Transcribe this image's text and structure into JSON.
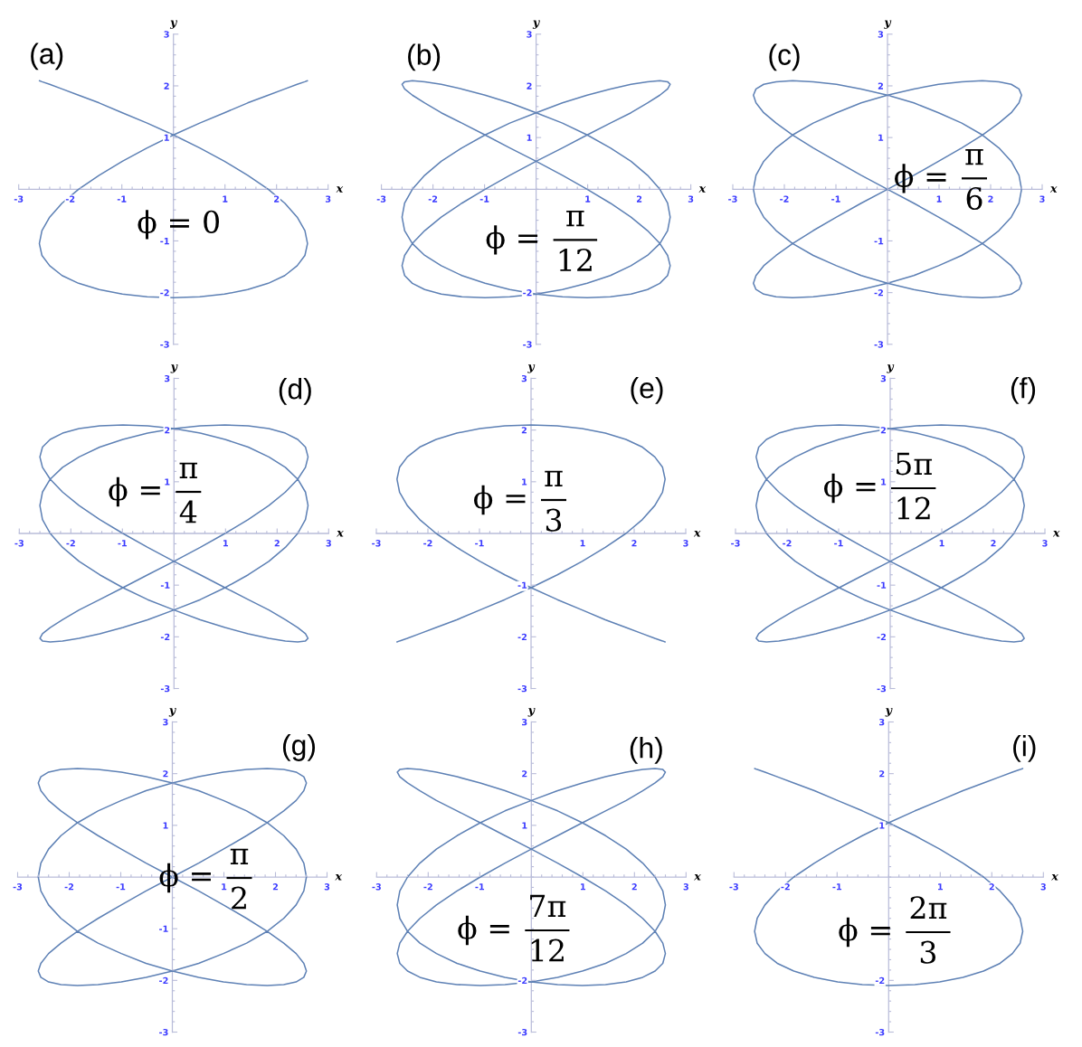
{
  "chart_data": [
    {
      "type": "line",
      "title": "(a)",
      "xlabel": "x",
      "ylabel": "y",
      "annotations": [
        "ϕ = 0"
      ],
      "xlim": [
        -3,
        3
      ],
      "ylim": [
        -3,
        3
      ],
      "xticks": [
        -3,
        -2,
        -1,
        1,
        2,
        3
      ],
      "yticks": [
        -3,
        -2,
        -1,
        1,
        2,
        3
      ],
      "series": [
        {
          "color": "#5e81b5",
          "x": [
            2.6,
            2.55,
            2.4,
            2.16,
            1.84,
            1.44,
            0.99,
            0.51,
            0,
            -0.51,
            -0.99,
            -1.44,
            -1.84,
            -2.16,
            -2.4,
            -2.55,
            -2.6,
            -2.55,
            -2.4,
            -2.16,
            -1.84,
            -1.44,
            -0.99,
            -0.51,
            0,
            0.51,
            0.99,
            1.44,
            1.84,
            2.16,
            2.4,
            2.55,
            2.6,
            2.55,
            2.4,
            2.16,
            1.84,
            1.44,
            0.99,
            0.51,
            0,
            -0.51,
            -0.99,
            -1.44,
            -1.84,
            -2.16,
            -2.4,
            -2.55,
            -2.6
          ],
          "values": [
            2.1,
            2.08,
            2.03,
            1.94,
            1.82,
            1.67,
            1.48,
            1.28,
            1.05,
            0.8,
            0.54,
            0.27,
            0,
            -0.27,
            -0.54,
            -0.8,
            -1.05,
            -1.28,
            -1.48,
            -1.67,
            -1.82,
            -1.94,
            -2.03,
            -2.08,
            -2.1,
            -2.08,
            -2.03,
            -1.94,
            -1.82,
            -1.67,
            -1.48,
            -1.28,
            -1.05,
            -0.8,
            -0.54,
            -0.27,
            0,
            0.27,
            0.54,
            0.8,
            1.05,
            1.28,
            1.48,
            1.67,
            1.82,
            1.94,
            2.03,
            2.08,
            2.1
          ]
        }
      ]
    },
    {
      "type": "line",
      "title": "(b)",
      "xlabel": "x",
      "ylabel": "y",
      "annotations": [
        "ϕ =",
        "π",
        "12"
      ],
      "xlim": [
        -3,
        3
      ],
      "ylim": [
        -3,
        3
      ],
      "xticks": [
        -3,
        -2,
        -1,
        1,
        2,
        3
      ],
      "yticks": [
        -3,
        -2,
        1,
        2,
        3
      ],
      "series": [
        {
          "color": "#5e81b5",
          "x": [
            2.6,
            2.55,
            2.4,
            2.16,
            1.84,
            1.44,
            0.99,
            0.51,
            0,
            -0.51,
            -0.99,
            -1.44,
            -1.84,
            -2.16,
            -2.4,
            -2.55,
            -2.6,
            -2.55,
            -2.4,
            -2.16,
            -1.84,
            -1.44,
            -0.99,
            -0.51,
            0,
            0.51,
            0.99,
            1.44,
            1.84,
            2.16,
            2.4,
            2.55,
            2.6,
            2.55,
            2.4,
            2.16,
            1.84,
            1.44,
            0.99,
            0.51,
            0,
            -0.51,
            -0.99,
            -1.44,
            -1.84,
            -2.16,
            -2.4,
            -2.55,
            -2.6,
            -2.55,
            -2.4,
            -2.16,
            -1.84,
            -1.44,
            -0.99,
            -0.51,
            0,
            0.51,
            0.99,
            1.44,
            1.84,
            2.16,
            2.4,
            2.55,
            2.6,
            2.55,
            2.4,
            2.16,
            1.84,
            1.44,
            0.99,
            0.51,
            0,
            -0.51,
            -0.99,
            -1.44,
            -1.84,
            -2.16,
            -2.4,
            -2.55,
            -2.6,
            -2.55,
            -2.4,
            -2.16,
            -1.84,
            -1.44,
            -0.99,
            -0.51,
            0,
            0.51,
            0.99,
            1.44,
            1.84,
            2.16,
            2.4,
            2.55,
            2.6,
            2.55,
            2.4,
            2.16
          ],
          "values": [
            2.03,
            1.94,
            1.82,
            1.67,
            1.48,
            1.28,
            1.05,
            0.8,
            0.54,
            0.27,
            0,
            -0.27,
            -0.54,
            -0.8,
            -1.05,
            -1.28,
            -1.48,
            -1.67,
            -1.82,
            -1.94,
            -2.03,
            -2.08,
            -2.1,
            -2.08,
            -2.03,
            -1.94,
            -1.82,
            -1.67,
            -1.48,
            -1.28,
            -1.05,
            -0.8,
            -0.54,
            -0.27,
            0,
            0.27,
            0.54,
            0.8,
            1.05,
            1.28,
            1.48,
            1.67,
            1.82,
            1.94,
            2.03,
            2.08,
            2.1,
            2.08,
            2.03,
            1.94,
            1.82,
            1.67,
            1.48,
            1.28,
            1.05,
            0.8,
            0.54,
            0.27,
            0,
            -0.27,
            -0.54,
            -0.8,
            -1.05,
            -1.28,
            -1.48,
            -1.67,
            -1.82,
            -1.94,
            -2.03,
            -2.08,
            -2.1,
            -2.08,
            -2.03,
            -1.94,
            -1.82,
            -1.67,
            -1.48,
            -1.28,
            -1.05,
            -0.8,
            -0.54,
            -0.27,
            0,
            0.27,
            0.54,
            0.8,
            1.05,
            1.28,
            1.48,
            1.67,
            1.82,
            1.94,
            2.03,
            2.08,
            2.1,
            2.08,
            2.03,
            1.94,
            1.82,
            1.67
          ]
        }
      ]
    },
    {
      "type": "line",
      "title": "(c)",
      "xlabel": "x",
      "ylabel": "y",
      "annotations": [
        "ϕ =",
        "π",
        "6"
      ],
      "xlim": [
        -3,
        3
      ],
      "ylim": [
        -3,
        3
      ],
      "xticks": [
        -3,
        -2,
        -1,
        1,
        2,
        3
      ],
      "yticks": [
        -3,
        -2,
        -1,
        1,
        2,
        3
      ],
      "series": [
        {
          "color": "#5e81b5",
          "x": [
            2.6,
            2.55,
            2.4,
            2.16,
            1.84,
            1.44,
            0.99,
            0.51,
            0,
            -0.51,
            -0.99,
            -1.44,
            -1.84,
            -2.16,
            -2.4,
            -2.55,
            -2.6,
            -2.55,
            -2.4,
            -2.16,
            -1.84,
            -1.44,
            -0.99,
            -0.51,
            0,
            0.51,
            0.99,
            1.44,
            1.84,
            2.16,
            2.4,
            2.55,
            2.6,
            2.55,
            2.4,
            2.16,
            1.84,
            1.44,
            0.99,
            0.51,
            0,
            -0.51,
            -0.99,
            -1.44,
            -1.84,
            -2.16,
            -2.4,
            -2.55,
            -2.6,
            -2.55,
            -2.4,
            -2.16,
            -1.84,
            -1.44,
            -0.99,
            -0.51,
            0,
            0.51,
            0.99,
            1.44,
            1.84,
            2.16,
            2.4,
            2.55,
            2.6,
            2.55,
            2.4,
            2.16,
            1.84,
            1.44,
            0.99,
            0.51,
            0,
            -0.51,
            -0.99,
            -1.44,
            -1.84,
            -2.16,
            -2.4,
            -2.55,
            -2.6,
            -2.55,
            -2.4,
            -2.16,
            -1.84,
            -1.44,
            -0.99,
            -0.51,
            0,
            0.51,
            0.99,
            1.44,
            1.84,
            2.16,
            2.4,
            2.55,
            2.6,
            2.55,
            2.4,
            2.16
          ],
          "values": [
            1.82,
            1.67,
            1.48,
            1.28,
            1.05,
            0.8,
            0.54,
            0.27,
            0,
            -0.27,
            -0.54,
            -0.8,
            -1.05,
            -1.28,
            -1.48,
            -1.67,
            -1.82,
            -1.94,
            -2.03,
            -2.08,
            -2.1,
            -2.08,
            -2.03,
            -1.94,
            -1.82,
            -1.67,
            -1.48,
            -1.28,
            -1.05,
            -0.8,
            -0.54,
            -0.27,
            0,
            0.27,
            0.54,
            0.8,
            1.05,
            1.28,
            1.48,
            1.67,
            1.82,
            1.94,
            2.03,
            2.08,
            2.1,
            2.08,
            2.03,
            1.94,
            1.82,
            1.67,
            1.48,
            1.28,
            1.05,
            0.8,
            0.54,
            0.27,
            0,
            -0.27,
            -0.54,
            -0.8,
            -1.05,
            -1.28,
            -1.48,
            -1.67,
            -1.82,
            -1.94,
            -2.03,
            -2.08,
            -2.1,
            -2.08,
            -2.03,
            -1.94,
            -1.82,
            -1.67,
            -1.48,
            -1.28,
            -1.05,
            -0.8,
            -0.54,
            -0.27,
            0,
            0.27,
            0.54,
            0.8,
            1.05,
            1.28,
            1.48,
            1.67,
            1.82,
            1.94,
            2.03,
            2.08,
            2.1,
            2.08,
            2.03,
            1.94,
            1.82,
            1.67,
            1.48,
            1.28
          ]
        }
      ]
    },
    {
      "type": "line",
      "title": "(d)",
      "xlabel": "x",
      "ylabel": "y",
      "annotations": [
        "ϕ =",
        "π",
        "4"
      ],
      "xlim": [
        -3,
        3
      ],
      "ylim": [
        -3,
        3
      ],
      "xticks": [
        -3,
        -2,
        -1,
        1,
        2,
        3
      ],
      "yticks": [
        -3,
        -2,
        -1,
        1,
        2,
        3
      ],
      "series": [
        {
          "color": "#5e81b5",
          "x": [
            2.6,
            2.55,
            2.4,
            2.16,
            1.84,
            1.44,
            0.99,
            0.51,
            0,
            -0.51,
            -0.99,
            -1.44,
            -1.84,
            -2.16,
            -2.4,
            -2.55,
            -2.6,
            -2.55,
            -2.4,
            -2.16,
            -1.84,
            -1.44,
            -0.99,
            -0.51,
            0,
            0.51,
            0.99,
            1.44,
            1.84,
            2.16,
            2.4,
            2.55,
            2.6,
            2.55,
            2.4,
            2.16,
            1.84,
            1.44,
            0.99,
            0.51,
            0,
            -0.51,
            -0.99,
            -1.44,
            -1.84,
            -2.16,
            -2.4,
            -2.55,
            -2.6,
            -2.55,
            -2.4,
            -2.16,
            -1.84,
            -1.44,
            -0.99,
            -0.51,
            0,
            0.51,
            0.99,
            1.44,
            1.84,
            2.16,
            2.4,
            2.55,
            2.6,
            2.55,
            2.4,
            2.16,
            1.84,
            1.44,
            0.99,
            0.51,
            0,
            -0.51,
            -0.99,
            -1.44,
            -1.84,
            -2.16,
            -2.4,
            -2.55,
            -2.6,
            -2.55,
            -2.4,
            -2.16,
            -1.84,
            -1.44,
            -0.99,
            -0.51,
            0,
            0.51,
            0.99,
            1.44,
            1.84,
            2.16,
            2.4,
            2.55,
            2.6,
            2.55,
            2.4,
            2.16
          ],
          "values": [
            1.48,
            1.28,
            1.05,
            0.8,
            0.54,
            0.27,
            0,
            -0.27,
            -0.54,
            -0.8,
            -1.05,
            -1.28,
            -1.48,
            -1.67,
            -1.82,
            -1.94,
            -2.03,
            -2.08,
            -2.1,
            -2.08,
            -2.03,
            -1.94,
            -1.82,
            -1.67,
            -1.48,
            -1.28,
            -1.05,
            -0.8,
            -0.54,
            -0.27,
            0,
            0.27,
            0.54,
            0.8,
            1.05,
            1.28,
            1.48,
            1.67,
            1.82,
            1.94,
            2.03,
            2.08,
            2.1,
            2.08,
            2.03,
            1.94,
            1.82,
            1.67,
            1.48,
            1.28,
            1.05,
            0.8,
            0.54,
            0.27,
            0,
            -0.27,
            -0.54,
            -0.8,
            -1.05,
            -1.28,
            -1.48,
            -1.67,
            -1.82,
            -1.94,
            -2.03,
            -2.08,
            -2.1,
            -2.08,
            -2.03,
            -1.94,
            -1.82,
            -1.67,
            -1.48,
            -1.28,
            -1.05,
            -0.8,
            -0.54,
            -0.27,
            0,
            0.27,
            0.54,
            0.8,
            1.05,
            1.28,
            1.48,
            1.67,
            1.82,
            1.94,
            2.03,
            2.08,
            2.1,
            2.08,
            2.03,
            1.94,
            1.82,
            1.67,
            1.48,
            1.28,
            1.05,
            0.8
          ]
        }
      ]
    },
    {
      "type": "line",
      "title": "(e)",
      "xlabel": "x",
      "ylabel": "y",
      "annotations": [
        "ϕ =",
        "π",
        "3"
      ],
      "xlim": [
        -3,
        3
      ],
      "ylim": [
        -3,
        3
      ],
      "xticks": [
        -3,
        -2,
        -1,
        1,
        2,
        3
      ],
      "yticks": [
        -3,
        -2,
        -1,
        1,
        2,
        3
      ],
      "series": [
        {
          "color": "#5e81b5",
          "x": [
            -2.6,
            -2.55,
            -2.4,
            -2.16,
            -1.84,
            -1.44,
            -0.99,
            -0.51,
            0,
            0.51,
            0.99,
            1.44,
            1.84,
            2.16,
            2.4,
            2.55,
            2.6,
            2.55,
            2.4,
            2.16,
            1.84,
            1.44,
            0.99,
            0.51,
            0,
            -0.51,
            -0.99,
            -1.44,
            -1.84,
            -2.16,
            -2.4,
            -2.55,
            -2.6,
            -2.55,
            -2.4,
            -2.16,
            -1.84,
            -1.44,
            -0.99,
            -0.51,
            0,
            0.51,
            0.99,
            1.44,
            1.84,
            2.16,
            2.4,
            2.55,
            2.6
          ],
          "values": [
            -2.1,
            -2.08,
            -2.03,
            -1.94,
            -1.82,
            -1.67,
            -1.48,
            -1.28,
            -1.05,
            -0.8,
            -0.54,
            -0.27,
            0,
            0.27,
            0.54,
            0.8,
            1.05,
            1.28,
            1.48,
            1.67,
            1.82,
            1.94,
            2.03,
            2.08,
            2.1,
            2.08,
            2.03,
            1.94,
            1.82,
            1.67,
            1.48,
            1.28,
            1.05,
            0.8,
            0.54,
            0.27,
            0,
            -0.27,
            -0.54,
            -0.8,
            -1.05,
            -1.28,
            -1.48,
            -1.67,
            -1.82,
            -1.94,
            -2.03,
            -2.08,
            -2.1
          ]
        }
      ]
    },
    {
      "type": "line",
      "title": "(f)",
      "xlabel": "x",
      "ylabel": "y",
      "annotations": [
        "ϕ =",
        "5π",
        "12"
      ],
      "xlim": [
        -3,
        3
      ],
      "ylim": [
        -3,
        3
      ],
      "xticks": [
        -3,
        -2,
        -1,
        1,
        2,
        3
      ],
      "yticks": [
        -3,
        -2,
        -1,
        1,
        2,
        3
      ],
      "series": [
        {
          "color": "#5e81b5",
          "x": [
            2.6,
            2.55,
            2.4,
            2.16,
            1.84,
            1.44,
            0.99,
            0.51,
            0,
            -0.51,
            -0.99,
            -1.44,
            -1.84,
            -2.16,
            -2.4,
            -2.55,
            -2.6,
            -2.55,
            -2.4,
            -2.16,
            -1.84,
            -1.44,
            -0.99,
            -0.51,
            0,
            0.51,
            0.99,
            1.44,
            1.84,
            2.16,
            2.4,
            2.55,
            2.6,
            2.55,
            2.4,
            2.16,
            1.84,
            1.44,
            0.99,
            0.51,
            0,
            -0.51,
            -0.99,
            -1.44,
            -1.84,
            -2.16,
            -2.4,
            -2.55,
            -2.6,
            -2.55,
            -2.4,
            -2.16,
            -1.84,
            -1.44,
            -0.99,
            -0.51,
            0,
            0.51,
            0.99,
            1.44,
            1.84,
            2.16,
            2.4,
            2.55,
            2.6,
            2.55,
            2.4,
            2.16,
            1.84,
            1.44,
            0.99,
            0.51,
            0,
            -0.51,
            -0.99,
            -1.44,
            -1.84,
            -2.16,
            -2.4,
            -2.55,
            -2.6,
            -2.55,
            -2.4,
            -2.16,
            -1.84,
            -1.44,
            -0.99,
            -0.51,
            0,
            0.51,
            0.99,
            1.44,
            1.84,
            2.16,
            2.4,
            2.55,
            2.6,
            2.55,
            2.4,
            2.16
          ],
          "values": [
            0.54,
            0.27,
            0,
            -0.27,
            -0.54,
            -0.8,
            -1.05,
            -1.28,
            -1.48,
            -1.67,
            -1.82,
            -1.94,
            -2.03,
            -2.08,
            -2.1,
            -2.08,
            -2.03,
            -1.94,
            -1.82,
            -1.67,
            -1.48,
            -1.28,
            -1.05,
            -0.8,
            -0.54,
            -0.27,
            0,
            0.27,
            0.54,
            0.8,
            1.05,
            1.28,
            1.48,
            1.67,
            1.82,
            1.94,
            2.03,
            2.08,
            2.1,
            2.08,
            2.03,
            1.94,
            1.82,
            1.67,
            1.48,
            1.28,
            1.05,
            0.8,
            0.54,
            0.27,
            0,
            -0.27,
            -0.54,
            -0.8,
            -1.05,
            -1.28,
            -1.48,
            -1.67,
            -1.82,
            -1.94,
            -2.03,
            -2.08,
            -2.1,
            -2.08,
            -2.03,
            -1.94,
            -1.82,
            -1.67,
            -1.48,
            -1.28,
            -1.05,
            -0.8,
            -0.54,
            -0.27,
            0,
            0.27,
            0.54,
            0.8,
            1.05,
            1.28,
            1.48,
            1.67,
            1.82,
            1.94,
            2.03,
            2.08,
            2.1,
            2.08,
            2.03,
            1.94,
            1.82,
            1.67,
            1.48,
            1.28,
            1.05,
            0.8,
            0.54,
            0.27,
            0,
            -0.27
          ]
        }
      ]
    },
    {
      "type": "line",
      "title": "(g)",
      "xlabel": "x",
      "ylabel": "y",
      "annotations": [
        "ϕ =",
        "π",
        "2"
      ],
      "xlim": [
        -3,
        3
      ],
      "ylim": [
        -3,
        3
      ],
      "xticks": [
        -3,
        -2,
        -1,
        1,
        2,
        3
      ],
      "yticks": [
        -3,
        -2,
        -1,
        1,
        2,
        3
      ],
      "series": [
        {
          "color": "#5e81b5",
          "x": [
            2.6,
            2.55,
            2.4,
            2.16,
            1.84,
            1.44,
            0.99,
            0.51,
            0,
            -0.51,
            -0.99,
            -1.44,
            -1.84,
            -2.16,
            -2.4,
            -2.55,
            -2.6,
            -2.55,
            -2.4,
            -2.16,
            -1.84,
            -1.44,
            -0.99,
            -0.51,
            0,
            0.51,
            0.99,
            1.44,
            1.84,
            2.16,
            2.4,
            2.55,
            2.6,
            2.55,
            2.4,
            2.16,
            1.84,
            1.44,
            0.99,
            0.51,
            0,
            -0.51,
            -0.99,
            -1.44,
            -1.84,
            -2.16,
            -2.4,
            -2.55,
            -2.6,
            -2.55,
            -2.4,
            -2.16,
            -1.84,
            -1.44,
            -0.99,
            -0.51,
            0,
            0.51,
            0.99,
            1.44,
            1.84,
            2.16,
            2.4,
            2.55,
            2.6,
            2.55,
            2.4,
            2.16,
            1.84,
            1.44,
            0.99,
            0.51,
            0,
            -0.51,
            -0.99,
            -1.44,
            -1.84,
            -2.16,
            -2.4,
            -2.55,
            -2.6,
            -2.55,
            -2.4,
            -2.16,
            -1.84,
            -1.44,
            -0.99,
            -0.51,
            0,
            0.51,
            0.99,
            1.44,
            1.84,
            2.16,
            2.4,
            2.55,
            2.6,
            2.55,
            2.4,
            2.16
          ],
          "values": [
            0,
            -0.27,
            -0.54,
            -0.8,
            -1.05,
            -1.28,
            -1.48,
            -1.67,
            -1.82,
            -1.94,
            -2.03,
            -2.08,
            -2.1,
            -2.08,
            -2.03,
            -1.94,
            -1.82,
            -1.67,
            -1.48,
            -1.28,
            -1.05,
            -0.8,
            -0.54,
            -0.27,
            0,
            0.27,
            0.54,
            0.8,
            1.05,
            1.28,
            1.48,
            1.67,
            1.82,
            1.94,
            2.03,
            2.08,
            2.1,
            2.08,
            2.03,
            1.94,
            1.82,
            1.67,
            1.48,
            1.28,
            1.05,
            0.8,
            0.54,
            0.27,
            0,
            -0.27,
            -0.54,
            -0.8,
            -1.05,
            -1.28,
            -1.48,
            -1.67,
            -1.82,
            -1.94,
            -2.03,
            -2.08,
            -2.1,
            -2.08,
            -2.03,
            -1.94,
            -1.82,
            -1.67,
            -1.48,
            -1.28,
            -1.05,
            -0.8,
            -0.54,
            -0.27,
            0,
            0.27,
            0.54,
            0.8,
            1.05,
            1.28,
            1.48,
            1.67,
            1.82,
            1.94,
            2.03,
            2.08,
            2.1,
            2.08,
            2.03,
            1.94,
            1.82,
            1.67,
            1.48,
            1.28,
            1.05,
            0.8,
            0.54,
            0.27,
            0,
            -0.27,
            -0.54,
            -0.8
          ]
        }
      ]
    },
    {
      "type": "line",
      "title": "(h)",
      "xlabel": "x",
      "ylabel": "y",
      "annotations": [
        "ϕ =",
        "7π",
        "12"
      ],
      "xlim": [
        -3,
        3
      ],
      "ylim": [
        -3,
        3
      ],
      "xticks": [
        -3,
        -2,
        -1,
        1,
        2,
        3
      ],
      "yticks": [
        -3,
        -2,
        1,
        2,
        3
      ],
      "series": [
        {
          "color": "#5e81b5",
          "x": [
            2.6,
            2.55,
            2.4,
            2.16,
            1.84,
            1.44,
            0.99,
            0.51,
            0,
            -0.51,
            -0.99,
            -1.44,
            -1.84,
            -2.16,
            -2.4,
            -2.55,
            -2.6,
            -2.55,
            -2.4,
            -2.16,
            -1.84,
            -1.44,
            -0.99,
            -0.51,
            0,
            0.51,
            0.99,
            1.44,
            1.84,
            2.16,
            2.4,
            2.55,
            2.6,
            2.55,
            2.4,
            2.16,
            1.84,
            1.44,
            0.99,
            0.51,
            0,
            -0.51,
            -0.99,
            -1.44,
            -1.84,
            -2.16,
            -2.4,
            -2.55,
            -2.6,
            -2.55,
            -2.4,
            -2.16,
            -1.84,
            -1.44,
            -0.99,
            -0.51,
            0,
            0.51,
            0.99,
            1.44,
            1.84,
            2.16,
            2.4,
            2.55,
            2.6,
            2.55,
            2.4,
            2.16,
            1.84,
            1.44,
            0.99,
            0.51,
            0,
            -0.51,
            -0.99,
            -1.44,
            -1.84,
            -2.16,
            -2.4,
            -2.55,
            -2.6,
            -2.55,
            -2.4,
            -2.16,
            -1.84,
            -1.44,
            -0.99,
            -0.51,
            0,
            0.51,
            0.99,
            1.44,
            1.84,
            2.16,
            2.4,
            2.55,
            2.6,
            2.55,
            2.4,
            2.16
          ],
          "values": [
            -0.54,
            -0.8,
            -1.05,
            -1.28,
            -1.48,
            -1.67,
            -1.82,
            -1.94,
            -2.03,
            -2.08,
            -2.1,
            -2.08,
            -2.03,
            -1.94,
            -1.82,
            -1.67,
            -1.48,
            -1.28,
            -1.05,
            -0.8,
            -0.54,
            -0.27,
            0,
            0.27,
            0.54,
            0.8,
            1.05,
            1.28,
            1.48,
            1.67,
            1.82,
            1.94,
            2.03,
            2.08,
            2.1,
            2.08,
            2.03,
            1.94,
            1.82,
            1.67,
            1.48,
            1.28,
            1.05,
            0.8,
            0.54,
            0.27,
            0,
            -0.27,
            -0.54,
            -0.8,
            -1.05,
            -1.28,
            -1.48,
            -1.67,
            -1.82,
            -1.94,
            -2.03,
            -2.08,
            -2.1,
            -2.08,
            -2.03,
            -1.94,
            -1.82,
            -1.67,
            -1.48,
            -1.28,
            -1.05,
            -0.8,
            -0.54,
            -0.27,
            0,
            0.27,
            0.54,
            0.8,
            1.05,
            1.28,
            1.48,
            1.67,
            1.82,
            1.94,
            2.03,
            2.08,
            2.1,
            2.08,
            2.03,
            1.94,
            1.82,
            1.67,
            1.48,
            1.28,
            1.05,
            0.8,
            0.54,
            0.27,
            0,
            -0.27,
            -0.54,
            -0.8,
            -1.05,
            -1.28
          ]
        }
      ]
    },
    {
      "type": "line",
      "title": "(i)",
      "xlabel": "x",
      "ylabel": "y",
      "annotations": [
        "ϕ =",
        "2π",
        "3"
      ],
      "xlim": [
        -3,
        3
      ],
      "ylim": [
        -3,
        3
      ],
      "xticks": [
        -3,
        -2,
        -1,
        1,
        2,
        3
      ],
      "yticks": [
        -3,
        -2,
        1,
        2,
        3
      ],
      "series": [
        {
          "color": "#5e81b5",
          "x": [
            2.6,
            2.55,
            2.4,
            2.16,
            1.84,
            1.44,
            0.99,
            0.51,
            0,
            -0.51,
            -0.99,
            -1.44,
            -1.84,
            -2.16,
            -2.4,
            -2.55,
            -2.6,
            -2.55,
            -2.4,
            -2.16,
            -1.84,
            -1.44,
            -0.99,
            -0.51,
            0,
            0.51,
            0.99,
            1.44,
            1.84,
            2.16,
            2.4,
            2.55,
            2.6,
            2.55,
            2.4,
            2.16,
            1.84,
            1.44,
            0.99,
            0.51,
            0,
            -0.51,
            -0.99,
            -1.44,
            -1.84,
            -2.16,
            -2.4,
            -2.55,
            -2.6
          ],
          "values": [
            2.1,
            2.08,
            2.03,
            1.94,
            1.82,
            1.67,
            1.48,
            1.28,
            1.05,
            0.8,
            0.54,
            0.27,
            0,
            -0.27,
            -0.54,
            -0.8,
            -1.05,
            -1.28,
            -1.48,
            -1.67,
            -1.82,
            -1.94,
            -2.03,
            -2.08,
            -2.1,
            -2.08,
            -2.03,
            -1.94,
            -1.82,
            -1.67,
            -1.48,
            -1.28,
            -1.05,
            -0.8,
            -0.54,
            -0.27,
            0,
            0.27,
            0.54,
            0.8,
            1.05,
            1.28,
            1.48,
            1.67,
            1.82,
            1.94,
            2.03,
            2.08,
            2.1
          ]
        }
      ]
    }
  ]
}
